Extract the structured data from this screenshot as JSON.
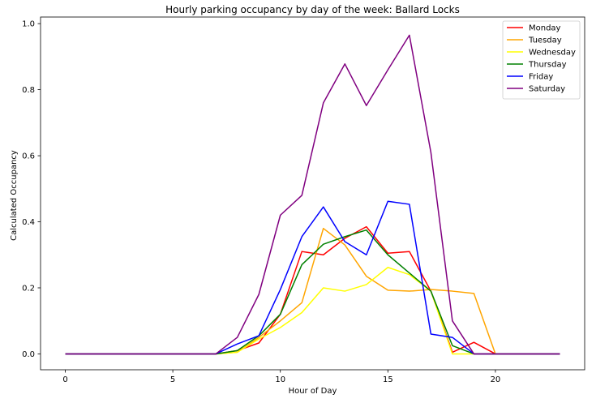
{
  "chart_data": {
    "type": "line",
    "title": "Hourly parking occupancy by day of the week: Ballard Locks",
    "xlabel": "Hour of Day",
    "ylabel": "Calculated Occupancy",
    "xlim": [
      -1.15,
      24.15
    ],
    "ylim": [
      -0.048,
      1.02
    ],
    "xticks": [
      0,
      5,
      10,
      15,
      20
    ],
    "yticks": [
      0.0,
      0.2,
      0.4,
      0.6,
      0.8,
      1.0
    ],
    "xtick_labels": [
      "0",
      "5",
      "10",
      "15",
      "20"
    ],
    "ytick_labels": [
      "0.0",
      "0.2",
      "0.4",
      "0.6",
      "0.8",
      "1.0"
    ],
    "grid": false,
    "legend_position": "top-right",
    "x": [
      0,
      1,
      2,
      3,
      4,
      5,
      6,
      7,
      8,
      9,
      10,
      11,
      12,
      13,
      14,
      15,
      16,
      17,
      18,
      19,
      20,
      21,
      22,
      23
    ],
    "series": [
      {
        "name": "Monday",
        "color": "#ff0000",
        "values": [
          0,
          0,
          0,
          0,
          0,
          0,
          0,
          0,
          0.01,
          0.033,
          0.12,
          0.31,
          0.3,
          0.35,
          0.385,
          0.305,
          0.31,
          0.19,
          0.005,
          0.035,
          0,
          0,
          0,
          0
        ]
      },
      {
        "name": "Tuesday",
        "color": "#ffa500",
        "values": [
          0,
          0,
          0,
          0,
          0,
          0,
          0,
          0,
          0.005,
          0.05,
          0.1,
          0.155,
          0.38,
          0.33,
          0.235,
          0.193,
          0.19,
          0.195,
          0.19,
          0.183,
          0,
          0,
          0,
          0
        ]
      },
      {
        "name": "Wednesday",
        "color": "#ffff00",
        "values": [
          0,
          0,
          0,
          0,
          0,
          0,
          0,
          0,
          0.005,
          0.045,
          0.08,
          0.125,
          0.2,
          0.19,
          0.21,
          0.262,
          0.24,
          0.19,
          0,
          0,
          0,
          0,
          0,
          0
        ]
      },
      {
        "name": "Thursday",
        "color": "#008000",
        "values": [
          0,
          0,
          0,
          0,
          0,
          0,
          0,
          0,
          0.01,
          0.055,
          0.12,
          0.27,
          0.332,
          0.355,
          0.375,
          0.3,
          0.245,
          0.19,
          0.025,
          0,
          0,
          0,
          0,
          0
        ]
      },
      {
        "name": "Friday",
        "color": "#0000ff",
        "values": [
          0,
          0,
          0,
          0,
          0,
          0,
          0,
          0,
          0.03,
          0.055,
          0.195,
          0.355,
          0.445,
          0.34,
          0.3,
          0.462,
          0.453,
          0.06,
          0.05,
          0,
          0,
          0,
          0,
          0
        ]
      },
      {
        "name": "Saturday",
        "color": "#800080",
        "values": [
          0,
          0,
          0,
          0,
          0,
          0,
          0,
          0,
          0.05,
          0.18,
          0.42,
          0.48,
          0.76,
          0.878,
          0.752,
          0.86,
          0.965,
          0.61,
          0.1,
          0,
          0,
          0,
          0,
          0
        ]
      }
    ]
  }
}
